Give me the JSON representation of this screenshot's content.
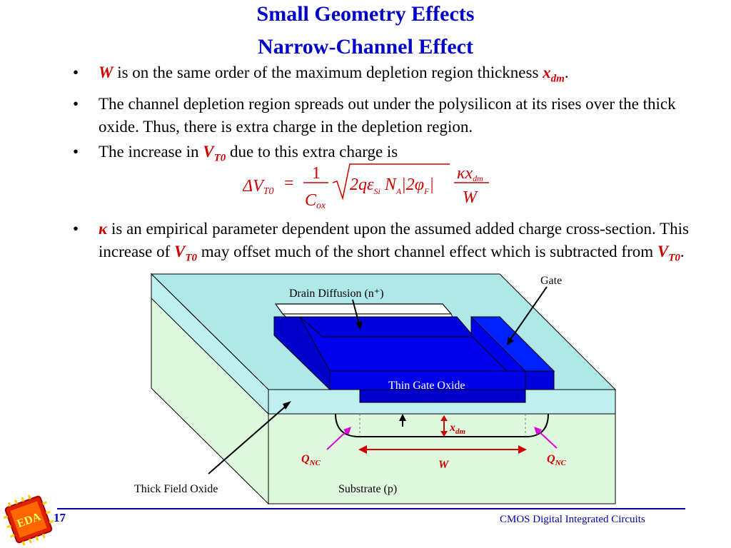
{
  "title": {
    "line1": "Small Geometry Effects",
    "line2": "Narrow-Channel Effect"
  },
  "bullets": {
    "b1": {
      "sym": "W",
      "text": " is on the same order of the maximum depletion region thickness ",
      "sym2": "x",
      "sym2_sub": "dm",
      "end": "."
    },
    "b2": {
      "text": "The channel depletion region spreads out under the polysilicon at its rises over the thick oxide. Thus, there is extra charge in the depletion region."
    },
    "b3": {
      "text": "The increase in ",
      "sym": "V",
      "sym_sub": "T0",
      "end": " due to this extra charge is"
    },
    "b4": {
      "sym": "κ",
      "text": " is an empirical parameter dependent upon the assumed added charge cross-section. This increase of ",
      "sym2": "V",
      "sym2_sub": "T0",
      "text2": " may offset much of the short channel effect which is subtracted from ",
      "sym3": "V",
      "sym3_sub": "T0",
      "end": "."
    }
  },
  "equation": {
    "lhs": "ΔV",
    "lhs_sub": "T0",
    "eq": "=",
    "num1": "1",
    "den1": "C",
    "den1_sub": "ox",
    "sqrt_body": "2qε",
    "eps_sub": "Si",
    "na": "N",
    "na_sub": "A",
    "abs": "|2φ",
    "phi_sub": "F",
    "abs_end": "|",
    "num2": "κx",
    "num2_sub": "dm",
    "den2": "W"
  },
  "diagram": {
    "label_gate": "Gate",
    "label_drain": "Drain Diffusion (n⁺)",
    "label_oxide": "Thin Gate Oxide",
    "label_xdm": "x",
    "label_xdm_sub": "dm",
    "label_qnc_left": "Q",
    "label_qnc_left_sub": "NC",
    "label_qnc_right": "Q",
    "label_qnc_right_sub": "NC",
    "label_w": "W",
    "label_field_oxide": "Thick Field Oxide",
    "label_substrate": "Substrate (p)",
    "colors": {
      "oxide": "#bff0f0",
      "substrate": "#ddf8dd",
      "gate": "#0000ee",
      "gate_dark": "#0000aa",
      "accent_red": "#cc0000",
      "magenta": "#dd00dd"
    }
  },
  "footer": {
    "page": "17",
    "course": "CMOS Digital Integrated Circuits",
    "logo_text": "EDA"
  }
}
